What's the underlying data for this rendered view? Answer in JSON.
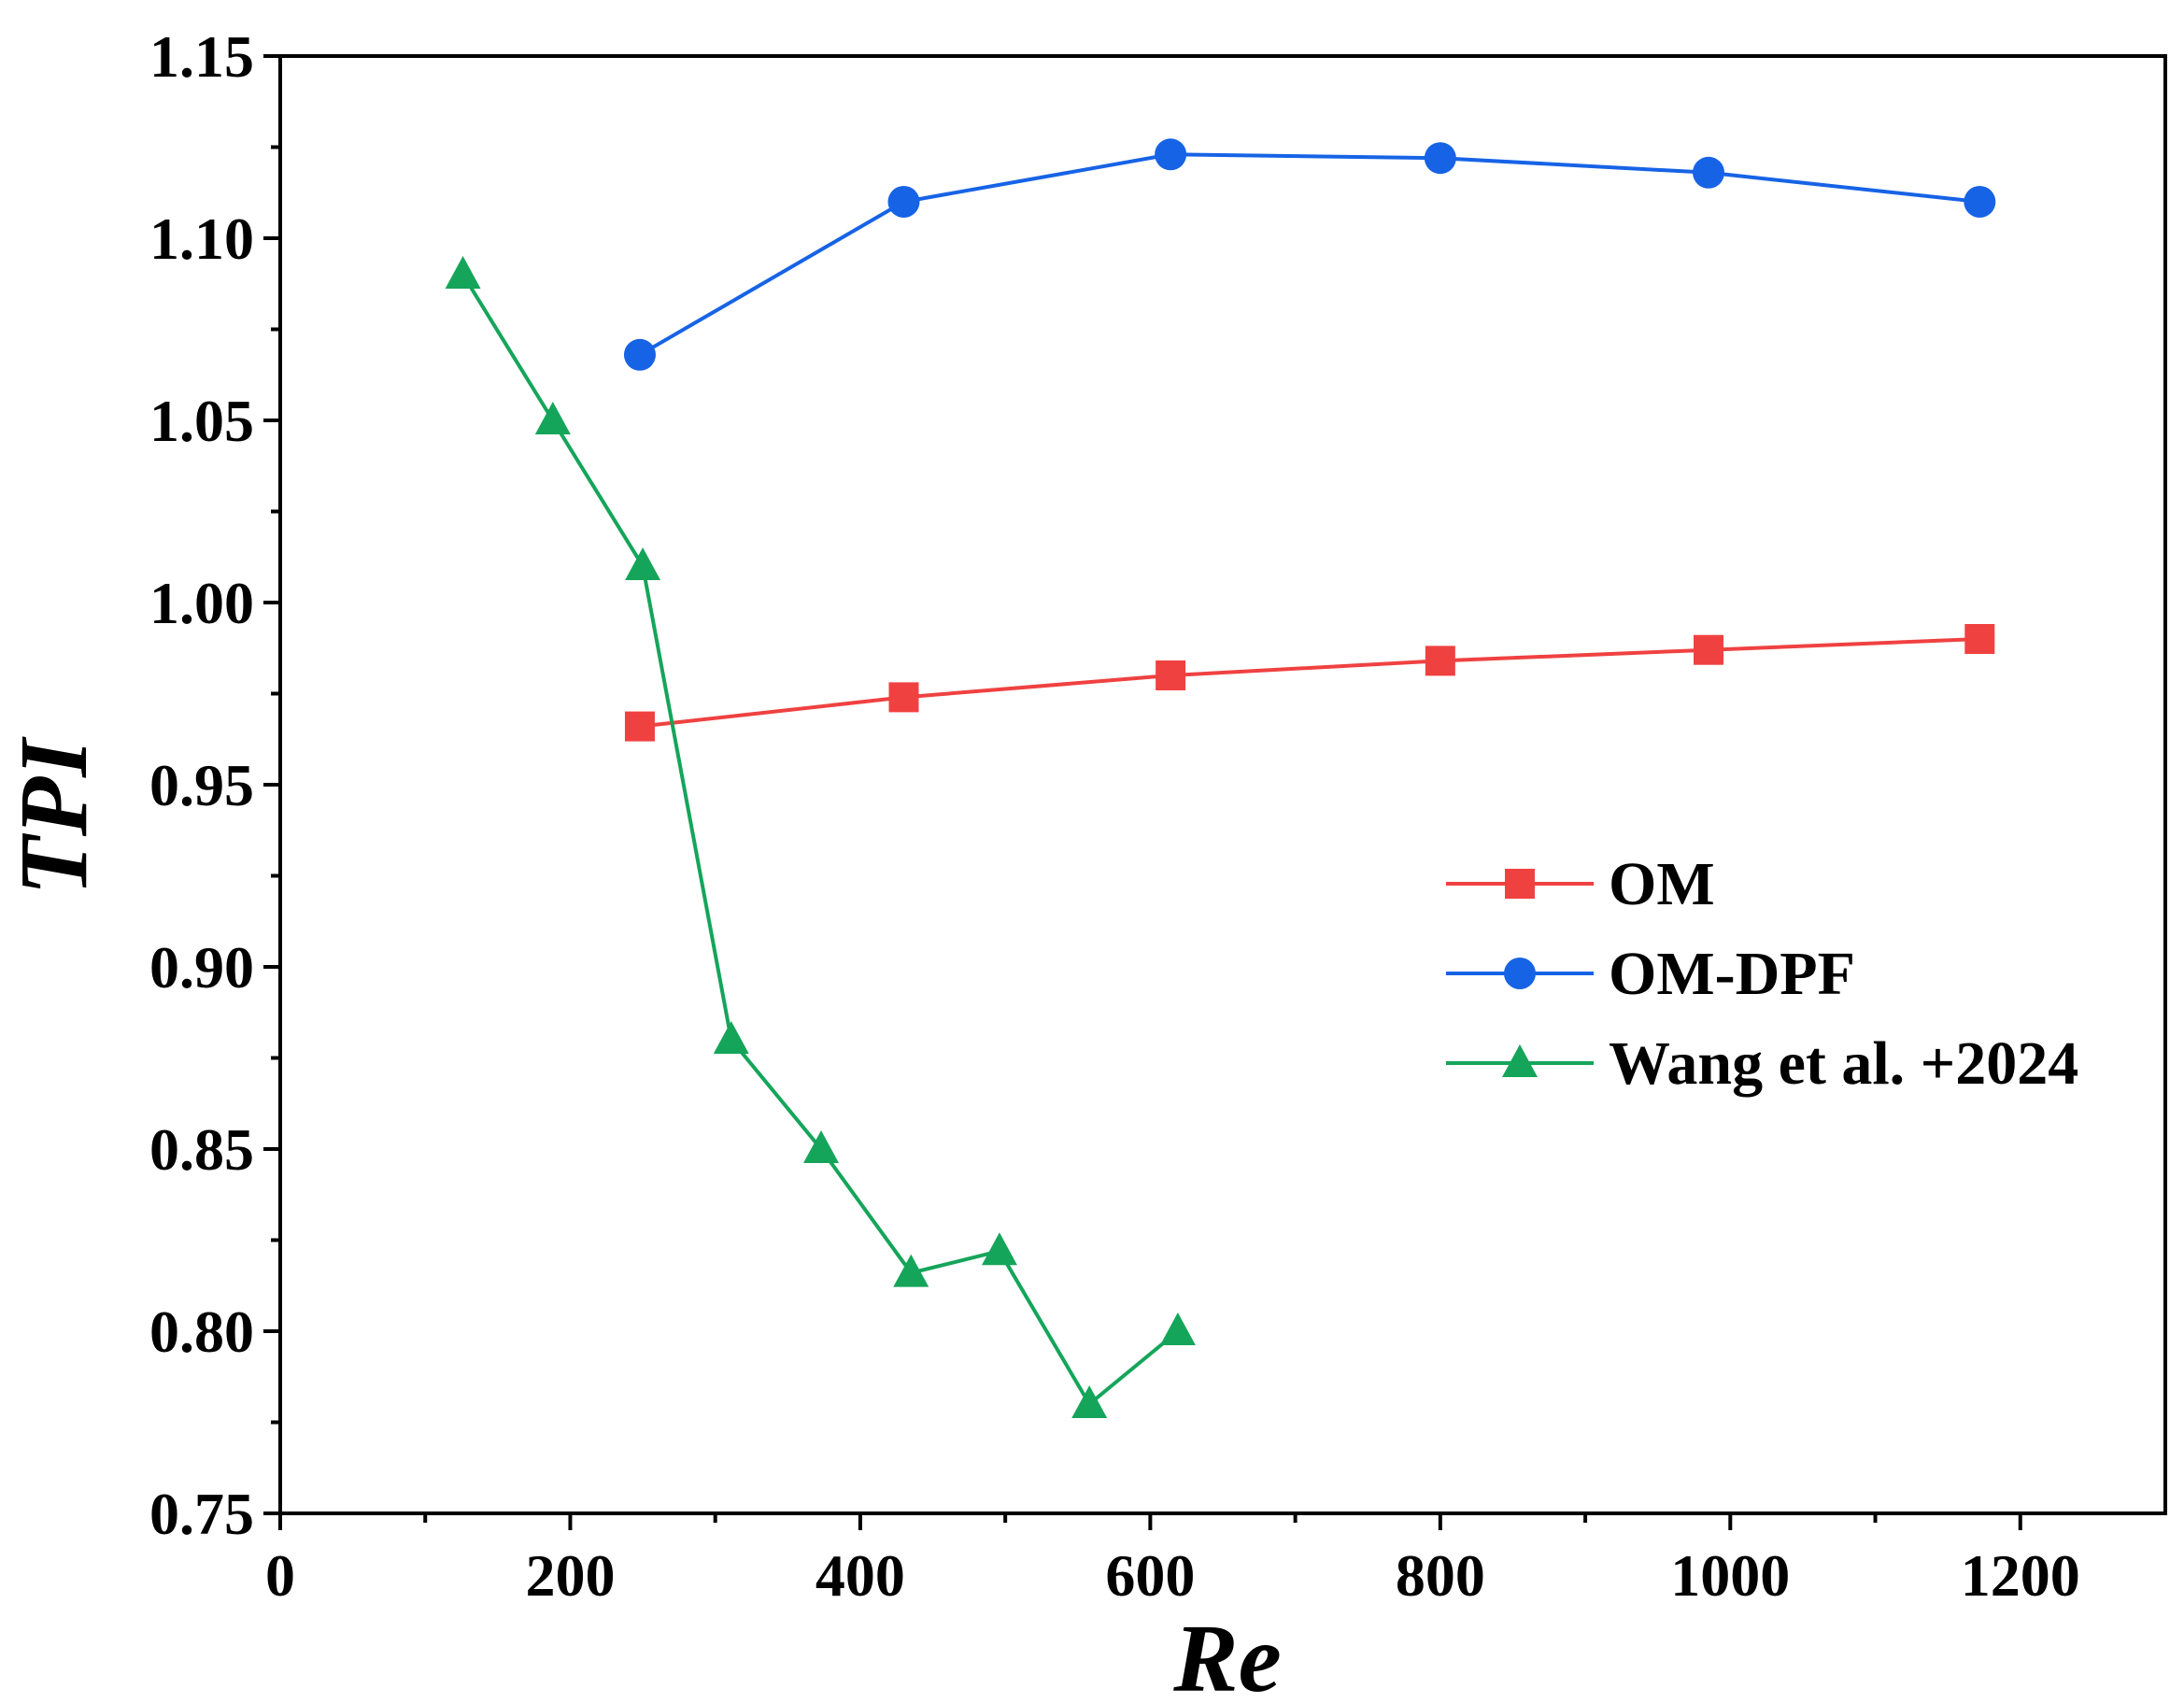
{
  "chart_data": {
    "type": "line",
    "title": "",
    "xlabel": "Re",
    "ylabel": "TPI",
    "xlim": [
      0,
      1300
    ],
    "ylim": [
      0.75,
      1.15
    ],
    "xticks": [
      0,
      200,
      400,
      600,
      800,
      1000,
      1200
    ],
    "xtick_labels": [
      "0",
      "200",
      "400",
      "600",
      "800",
      "1000",
      "1200"
    ],
    "xminor_step": 100,
    "yticks": [
      0.75,
      0.8,
      0.85,
      0.9,
      0.95,
      1.0,
      1.05,
      1.1,
      1.15
    ],
    "ytick_labels": [
      "0.75",
      "0.80",
      "0.85",
      "0.90",
      "0.95",
      "1.00",
      "1.05",
      "1.10",
      "1.15"
    ],
    "yminor_step": 0.025,
    "grid": false,
    "legend_position": "center-right",
    "series": [
      {
        "name": "OM",
        "color": "#f04141",
        "marker": "square",
        "x": [
          248,
          430,
          614,
          800,
          985,
          1172
        ],
        "y": [
          0.966,
          0.974,
          0.98,
          0.984,
          0.987,
          0.99
        ]
      },
      {
        "name": "OM-DPF",
        "color": "#1763e6",
        "marker": "circle",
        "x": [
          248,
          430,
          614,
          800,
          985,
          1172
        ],
        "y": [
          1.068,
          1.11,
          1.123,
          1.122,
          1.118,
          1.11
        ]
      },
      {
        "name": "Wang et al. +2024",
        "color": "#15a55a",
        "marker": "triangle",
        "x": [
          126,
          188,
          250,
          311,
          373,
          435,
          496,
          558,
          619
        ],
        "y": [
          1.09,
          1.05,
          1.01,
          0.88,
          0.85,
          0.816,
          0.822,
          0.78,
          0.8
        ]
      }
    ]
  }
}
